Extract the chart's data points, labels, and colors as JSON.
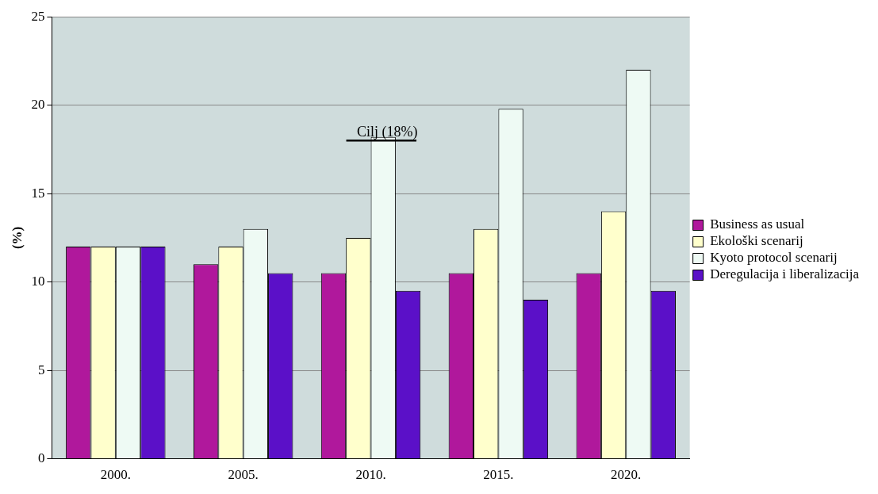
{
  "chart_data": {
    "type": "bar",
    "ylabel": "(%)",
    "categories": [
      "2000.",
      "2005.",
      "2010.",
      "2015.",
      "2020."
    ],
    "series": [
      {
        "name": "Business as usual",
        "color": "#b0189c",
        "values": [
          12,
          11,
          10.5,
          10.5,
          10.5
        ]
      },
      {
        "name": "Ekološki scenarij",
        "color": "#ffffcc",
        "values": [
          12,
          12,
          12.5,
          13,
          14
        ]
      },
      {
        "name": "Kyoto protocol scenarij",
        "color": "#eefaf4",
        "values": [
          12,
          13,
          18.2,
          19.8,
          22
        ]
      },
      {
        "name": "Deregulacija i liberalizacija",
        "color": "#5b10c8",
        "values": [
          12,
          10.5,
          9.5,
          9,
          9.5
        ]
      }
    ],
    "ylim": [
      0,
      25
    ],
    "yticks": [
      0,
      5,
      10,
      15,
      20,
      25
    ],
    "grid": "y",
    "legend": "right",
    "annotations": [
      {
        "text": "Cilj (18%)",
        "x": "2010.",
        "y": 18
      }
    ]
  }
}
